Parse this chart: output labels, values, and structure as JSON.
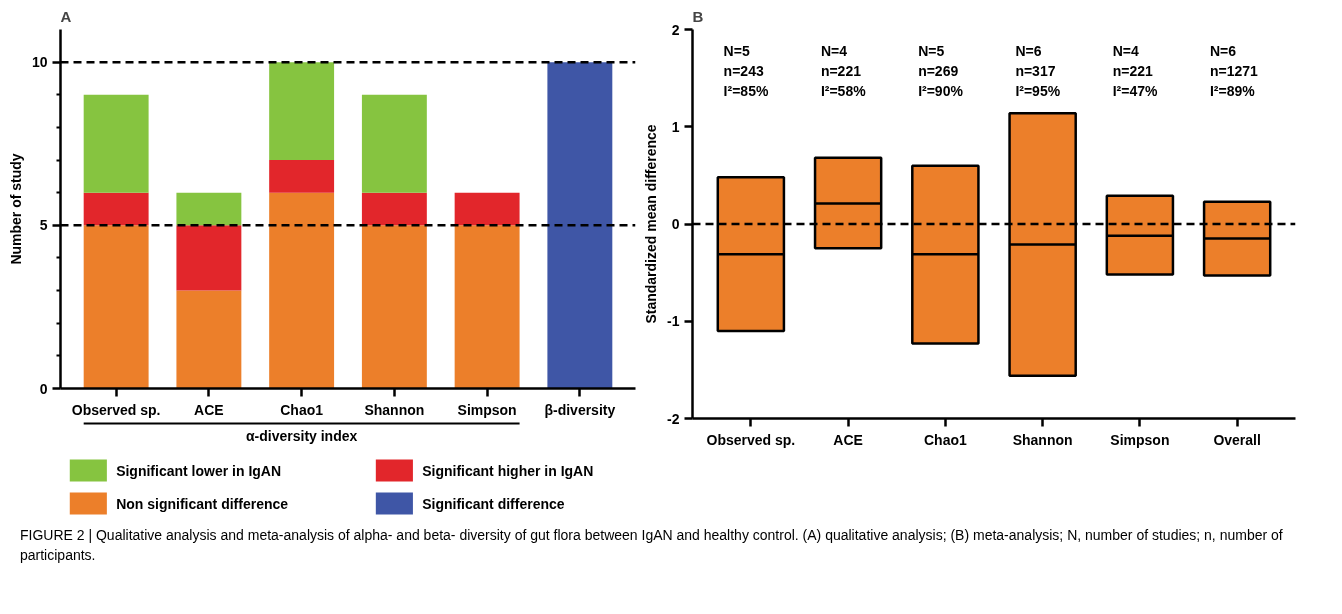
{
  "chart_data": [
    {
      "type": "bar",
      "title": "A",
      "ylabel": "Number of study",
      "xlabel": "α-diversity index",
      "stacked": true,
      "categories": [
        "Observed sp.",
        "ACE",
        "Chao1",
        "Shannon",
        "Simpson",
        "β-diversity"
      ],
      "series": [
        {
          "name": "Non significant difference",
          "color": "#ec7f2a",
          "values": [
            5,
            3,
            6,
            5,
            5,
            null
          ]
        },
        {
          "name": "Significant higher in IgAN",
          "color": "#e2262b",
          "values": [
            1,
            2,
            1,
            1,
            1,
            null
          ]
        },
        {
          "name": "Significant lower in IgAN",
          "color": "#86c440",
          "values": [
            3,
            1,
            3,
            3,
            null,
            null
          ]
        },
        {
          "name": "Significant difference",
          "color": "#3f56a6",
          "values": [
            null,
            null,
            null,
            null,
            null,
            10
          ]
        }
      ],
      "ylim": [
        0,
        11
      ],
      "yticks": [
        0,
        {
          "value": 1,
          "label": null
        },
        {
          "value": 2,
          "label": null
        },
        {
          "value": 3,
          "label": null
        },
        {
          "value": 4,
          "label": null
        },
        5,
        {
          "value": 6,
          "label": null
        },
        {
          "value": 7,
          "label": null
        },
        {
          "value": 8,
          "label": null
        },
        {
          "value": 9,
          "label": null
        },
        10
      ],
      "ref_lines": [
        {
          "axis": "y",
          "value": 5,
          "color": "#000000",
          "line_style": "dashed"
        },
        {
          "axis": "y",
          "value": 10,
          "color": "#000000",
          "line_style": "dashed"
        }
      ],
      "legend": "bottom",
      "grid": false,
      "annotations": [
        "FIGURE 2 | Qualitative analysis and meta-analysis of alpha- and beta- diversity of gut flora between IgAN and healthy control. (A) qualitative analysis; (B) meta-analysis; N, number of studies; n, number of participants."
      ]
    },
    {
      "type": "box",
      "title": "B",
      "ylabel": "Standardized mean difference",
      "categories": [
        "Observed sp.",
        "ACE",
        "Chao1",
        "Shannon",
        "Simpson",
        "Overall"
      ],
      "color": "#ec7f2a",
      "boxes": [
        {
          "low": -1.1,
          "q1": -1.1,
          "median": -0.31,
          "q3": 0.48,
          "high": 0.48
        },
        {
          "low": -0.25,
          "q1": -0.25,
          "median": 0.21,
          "q3": 0.68,
          "high": 0.68
        },
        {
          "low": -1.23,
          "q1": -1.23,
          "median": -0.31,
          "q3": 0.6,
          "high": 0.6
        },
        {
          "low": -1.56,
          "q1": -1.56,
          "median": -0.21,
          "q3": 1.14,
          "high": 1.14
        },
        {
          "low": -0.52,
          "q1": -0.52,
          "median": -0.12,
          "q3": 0.29,
          "high": 0.29
        },
        {
          "low": -0.53,
          "q1": -0.53,
          "median": -0.15,
          "q3": 0.23,
          "high": 0.23
        }
      ],
      "ylim": [
        -2,
        2
      ],
      "yticks": [
        -2,
        -1,
        0,
        1,
        2
      ],
      "ref_lines": [
        {
          "axis": "y",
          "value": 0,
          "color": "#000000",
          "line_style": "dashed"
        }
      ],
      "grid": false,
      "annotations": [
        "N=5\nn=243\nI²=85%",
        "N=4\nn=221\nI²=58%",
        "N=5\nn=269\nI²=90%",
        "N=6\nn=317\nI²=95%",
        "N=4\nn=221\nI²=47%",
        "N=6\nn=1271\nI²=89%"
      ]
    }
  ]
}
